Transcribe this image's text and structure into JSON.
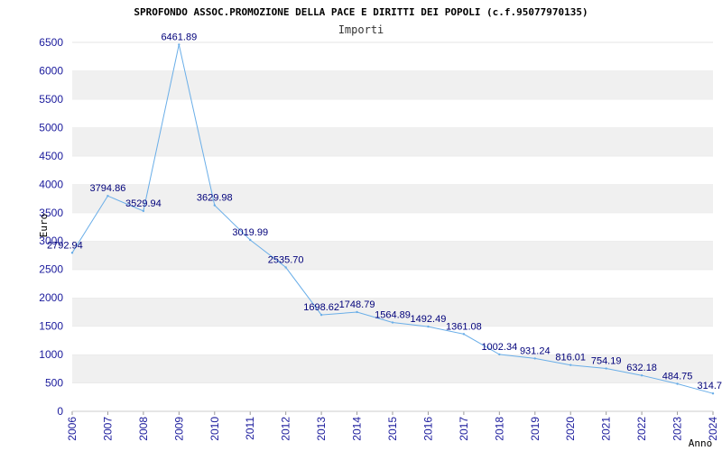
{
  "chart_data": {
    "type": "line",
    "title": "SPROFONDO ASSOC.PROMOZIONE DELLA PACE E DIRITTI DEI POPOLI (c.f.95077970135)",
    "subtitle": "Importi",
    "xlabel": "Anno",
    "ylabel": "Euro",
    "categories": [
      "2006",
      "2007",
      "2008",
      "2009",
      "2010",
      "2011",
      "2012",
      "2013",
      "2014",
      "2015",
      "2016",
      "2017",
      "2018",
      "2019",
      "2020",
      "2021",
      "2022",
      "2023",
      "2024"
    ],
    "series": [
      {
        "values": [
          2792.94,
          3794.86,
          3529.94,
          6461.89,
          3629.98,
          3019.99,
          2535.7,
          1698.62,
          1748.79,
          1564.89,
          1492.49,
          1361.08,
          1002.34,
          931.24,
          816.01,
          754.19,
          632.18,
          484.75,
          314.7
        ],
        "labels": [
          "2792.94",
          "3794.86",
          "3529.94",
          "6461.89",
          "3629.98",
          "3019.99",
          "2535.70",
          "1698.62",
          "1748.79",
          "1564.89",
          "1492.49",
          "1361.08",
          "1002.34",
          "931.24",
          "816.01",
          "754.19",
          "632.18",
          "484.75",
          "314.7"
        ]
      }
    ],
    "yticks": [
      "0",
      "500",
      "1000",
      "1500",
      "2000",
      "2500",
      "3000",
      "3500",
      "4000",
      "4500",
      "5000",
      "5500",
      "6000",
      "6500"
    ],
    "ylim": [
      0,
      6500
    ],
    "grid": "horizontal alternating bands",
    "legend": "none",
    "colors": {
      "line": "#6aaee8",
      "band": "#f0f0f0",
      "tick_text": "#1a1a9c",
      "label_text": "#00007a"
    }
  }
}
